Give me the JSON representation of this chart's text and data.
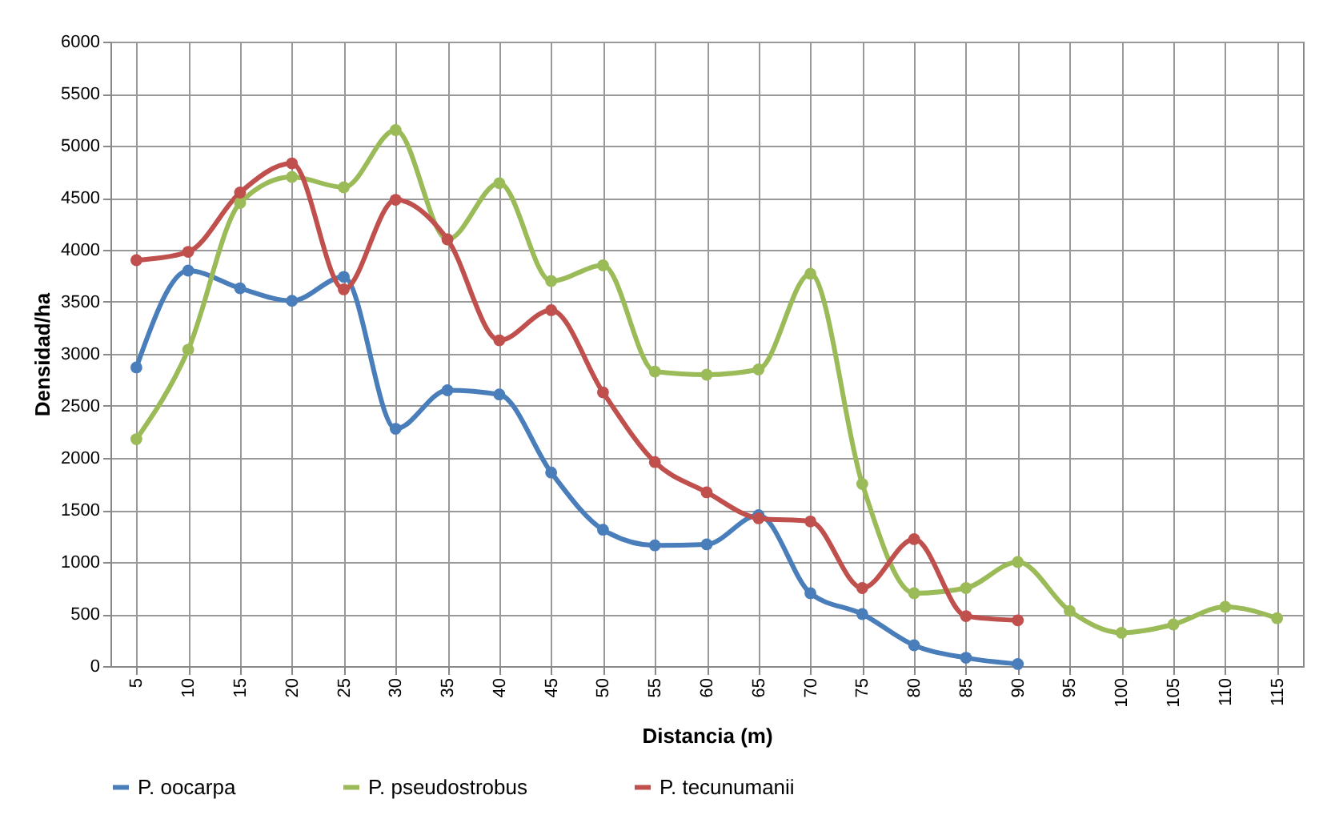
{
  "chart_data": {
    "type": "line",
    "xlabel": "Distancia (m)",
    "ylabel": "Densidad/ha",
    "categories": [
      "5",
      "10",
      "15",
      "20",
      "25",
      "30",
      "35",
      "40",
      "45",
      "50",
      "55",
      "60",
      "65",
      "70",
      "75",
      "80",
      "85",
      "90",
      "95",
      "100",
      "105",
      "110",
      "115"
    ],
    "ylim": [
      0,
      6000
    ],
    "yticks": [
      0,
      500,
      1000,
      1500,
      2000,
      2500,
      3000,
      3500,
      4000,
      4500,
      5000,
      5500,
      6000
    ],
    "grid": true,
    "legend": "bottom",
    "marker": "circle",
    "series": [
      {
        "name": "P. oocarpa",
        "color": "#4a7ebb",
        "values": [
          2870,
          3800,
          3630,
          3510,
          3740,
          2280,
          2650,
          2610,
          1860,
          1310,
          1160,
          1170,
          1450,
          700,
          500,
          200,
          80,
          20,
          null,
          null,
          null,
          null,
          null
        ]
      },
      {
        "name": "P. pseudostrobus",
        "color": "#9bbb59",
        "values": [
          2180,
          3040,
          4450,
          4700,
          4600,
          5150,
          4100,
          4640,
          3700,
          3850,
          2830,
          2800,
          2850,
          3770,
          1750,
          700,
          750,
          1000,
          530,
          320,
          400,
          570,
          460
        ]
      },
      {
        "name": "P. tecunumanii",
        "color": "#c0504d",
        "values": [
          3900,
          3980,
          4550,
          4830,
          3620,
          4480,
          4100,
          3130,
          3420,
          2630,
          1960,
          1670,
          1420,
          1390,
          750,
          1220,
          480,
          440,
          null,
          null,
          null,
          null,
          null
        ]
      }
    ]
  }
}
